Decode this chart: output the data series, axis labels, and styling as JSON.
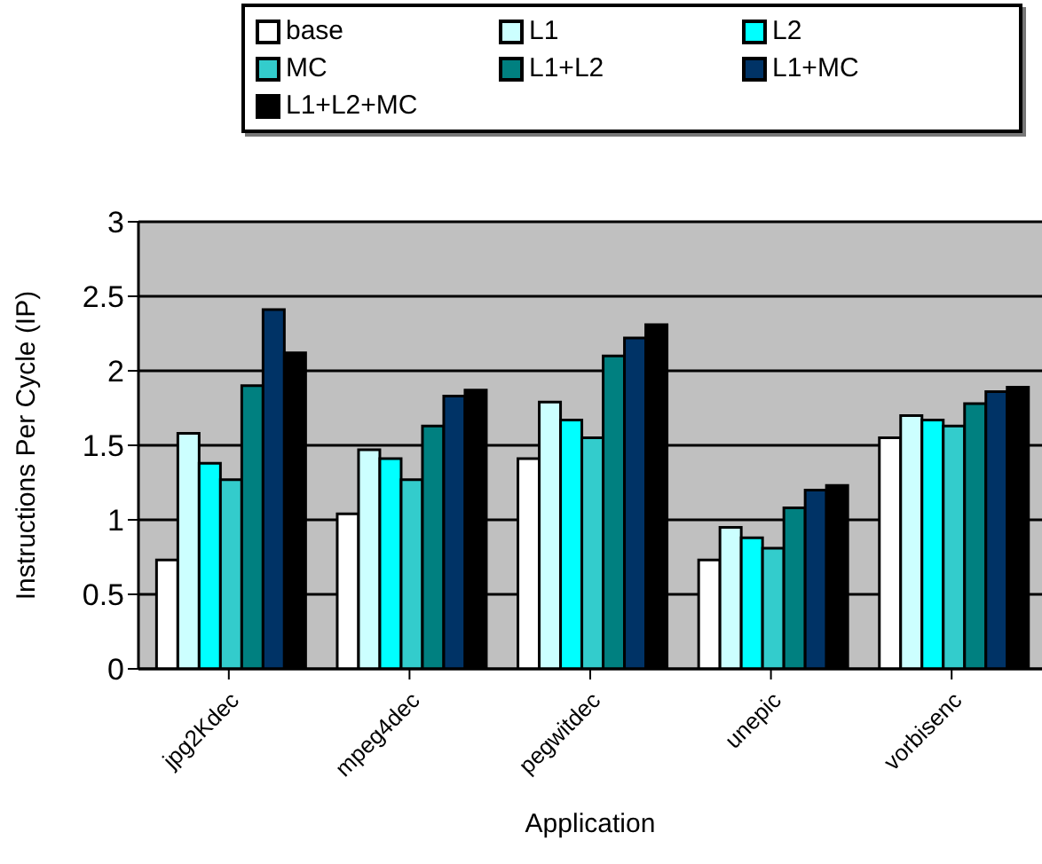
{
  "chart_data": {
    "type": "bar",
    "xlabel": "Application",
    "ylabel": "Instructions Per Cycle (IP)",
    "categories": [
      "jpg2Kdec",
      "mpeg4dec",
      "pegwitdec",
      "unepic",
      "vorbisenc"
    ],
    "series": [
      {
        "name": "base",
        "color": "#ffffff",
        "values": [
          0.73,
          1.04,
          1.41,
          0.73,
          1.55
        ]
      },
      {
        "name": "L1",
        "color": "#ccffff",
        "values": [
          1.58,
          1.47,
          1.79,
          0.95,
          1.7
        ]
      },
      {
        "name": "L2",
        "color": "#00ffff",
        "values": [
          1.38,
          1.41,
          1.67,
          0.88,
          1.67
        ]
      },
      {
        "name": "MC",
        "color": "#33cccc",
        "values": [
          1.27,
          1.27,
          1.55,
          0.81,
          1.63
        ]
      },
      {
        "name": "L1+L2",
        "color": "#008080",
        "values": [
          1.9,
          1.63,
          2.1,
          1.08,
          1.78
        ]
      },
      {
        "name": "L1+MC",
        "color": "#003366",
        "values": [
          2.41,
          1.83,
          2.22,
          1.2,
          1.86
        ]
      },
      {
        "name": "L1+L2+MC",
        "color": "#000000",
        "values": [
          2.12,
          1.87,
          2.31,
          1.23,
          1.89
        ]
      }
    ],
    "ylim": [
      0,
      3
    ],
    "yticks": [
      0,
      0.5,
      1,
      1.5,
      2,
      2.5,
      3
    ],
    "grid": "y",
    "legend": "top"
  }
}
